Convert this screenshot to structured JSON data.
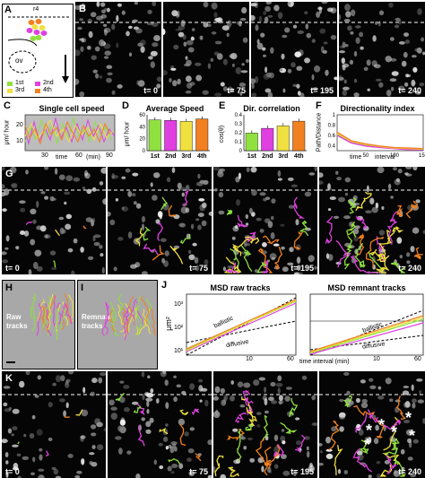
{
  "panels": {
    "A": {
      "label": "A",
      "region": "r4",
      "ov": "ov",
      "legend": [
        {
          "text": "1st",
          "color": "#90e040"
        },
        {
          "text": "2nd",
          "color": "#e040e0"
        },
        {
          "text": "3rd",
          "color": "#f0e040"
        },
        {
          "text": "4th",
          "color": "#f08020"
        }
      ]
    },
    "B": {
      "label": "B",
      "times": [
        "t= 0",
        "t= 75",
        "t= 195",
        "t= 240"
      ]
    },
    "C": {
      "label": "C",
      "title": "Single cell speed",
      "ylabel": "μm/ hour",
      "xlabel": "time",
      "xunit": "(min)",
      "yticks": [
        "10",
        "20"
      ],
      "xticks": [
        "30",
        "60",
        "90"
      ]
    },
    "D": {
      "label": "D",
      "title": "Average Speed",
      "ylabel": "μm/ hour",
      "yticks": [
        "0",
        "20",
        "40",
        "60"
      ]
    },
    "E": {
      "label": "E",
      "title": "Dir. correlation",
      "ylabel": "cos(θ)",
      "yticks": [
        "0",
        "0.1",
        "0.2",
        "0.3",
        "0.4"
      ]
    },
    "F": {
      "label": "F",
      "title": "Directionality index",
      "ylabel": "Path/Distance",
      "xlabel": "time",
      "xmid": "interval",
      "xticks": [
        "50",
        "100",
        "150"
      ],
      "yticks": [
        "0.4",
        "0.6",
        "0.8",
        "1"
      ]
    },
    "G": {
      "label": "G",
      "times": [
        "t= 0",
        "t= 75",
        "t= 195",
        "t= 240"
      ]
    },
    "H": {
      "label": "H",
      "text1": "Raw",
      "text2": "tracks"
    },
    "I": {
      "label": "I",
      "text1": "Remnant",
      "text2": "tracks"
    },
    "J": {
      "label": "J",
      "title1": "MSD raw tracks",
      "title2": "MSD remnant tracks",
      "ylabel": "μm²",
      "ballistic": "ballistic",
      "diffusive": "diffusive",
      "xlabel": "time interval (min)",
      "xt1": "10",
      "xt2": "60",
      "yt1": "10³",
      "yt2": "10²",
      "yt3": "10¹"
    },
    "K": {
      "label": "K",
      "times": [
        "t= 0",
        "t= 75",
        "t= 195",
        "t= 240"
      ]
    }
  },
  "groups": [
    "1st",
    "2nd",
    "3rd",
    "4th"
  ],
  "colors": {
    "g1": "#90e040",
    "g2": "#e040e0",
    "g3": "#f0e040",
    "g4": "#f08020"
  },
  "chart_data": [
    {
      "type": "bar",
      "title": "Average Speed",
      "categories": [
        "1st",
        "2nd",
        "3rd",
        "4th"
      ],
      "values": [
        60,
        59,
        57,
        62
      ],
      "ylabel": "μm/ hour",
      "ylim": [
        0,
        70
      ]
    },
    {
      "type": "bar",
      "title": "Dir. correlation",
      "categories": [
        "1st",
        "2nd",
        "3rd",
        "4th"
      ],
      "values": [
        0.22,
        0.28,
        0.31,
        0.37
      ],
      "ylabel": "cos(θ)",
      "ylim": [
        0,
        0.45
      ]
    },
    {
      "type": "line",
      "title": "Directionality index",
      "ylabel": "Path/Distance",
      "xlabel": "time interval",
      "ylim": [
        0.3,
        1.0
      ],
      "x": [
        0,
        25,
        50,
        75,
        100,
        125,
        150
      ],
      "series": [
        {
          "values": [
            0.62,
            0.46,
            0.4,
            0.37,
            0.35,
            0.33,
            0.33
          ]
        },
        {
          "values": [
            0.6,
            0.45,
            0.39,
            0.36,
            0.34,
            0.32,
            0.32
          ]
        },
        {
          "values": [
            0.64,
            0.48,
            0.42,
            0.38,
            0.35,
            0.34,
            0.33
          ]
        },
        {
          "values": [
            0.66,
            0.49,
            0.43,
            0.39,
            0.36,
            0.35,
            0.34
          ]
        }
      ]
    }
  ]
}
